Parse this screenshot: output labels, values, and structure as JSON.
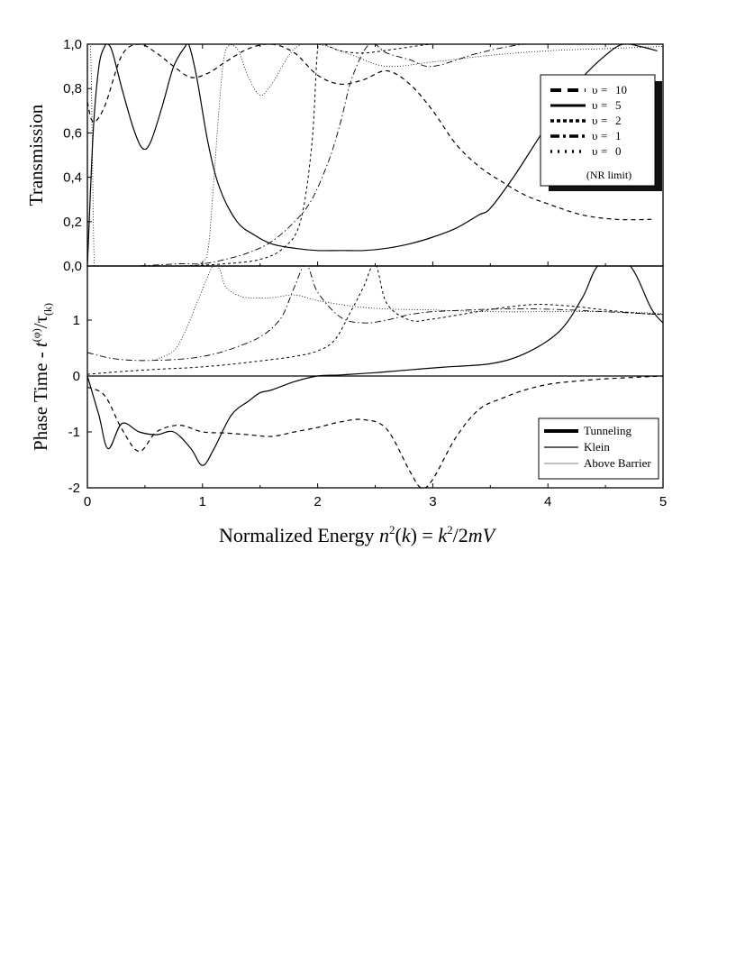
{
  "chart_data": [
    {
      "type": "line",
      "panel": "top",
      "ylabel": "Transmission",
      "xlim": [
        0,
        5
      ],
      "ylim": [
        0,
        1
      ],
      "y_ticks": [
        "0,0",
        "0,2",
        "0,4",
        "0,6",
        "0,8",
        "1,0"
      ],
      "legend_placement": "right",
      "legend": [
        {
          "symbol": "υ",
          "eq": "=",
          "value": "10",
          "style": "dash"
        },
        {
          "symbol": "υ",
          "eq": "=",
          "value": "5",
          "style": "solid"
        },
        {
          "symbol": "υ",
          "eq": "=",
          "value": "2",
          "style": "short-dash"
        },
        {
          "symbol": "υ",
          "eq": "=",
          "value": "1",
          "style": "dash-dot"
        },
        {
          "symbol": "υ",
          "eq": "=",
          "value": "0",
          "style": "dot"
        }
      ],
      "legend_note": "(NR limit)",
      "series": [
        {
          "style": "dash",
          "x": [
            0,
            0.05,
            0.15,
            0.3,
            0.45,
            0.6,
            0.75,
            0.9,
            1.05,
            1.2,
            1.4,
            1.6,
            1.8,
            2.0,
            2.2,
            2.4,
            2.6,
            2.8,
            3.0,
            3.2,
            3.4,
            3.6,
            3.8,
            4.0,
            4.3,
            4.6,
            4.9
          ],
          "y": [
            0.74,
            0.65,
            0.72,
            0.95,
            1.0,
            0.96,
            0.9,
            0.85,
            0.87,
            0.92,
            0.98,
            1.0,
            0.96,
            0.86,
            0.82,
            0.84,
            0.88,
            0.82,
            0.7,
            0.55,
            0.45,
            0.38,
            0.32,
            0.28,
            0.23,
            0.21,
            0.21
          ]
        },
        {
          "style": "solid",
          "x": [
            0,
            0.05,
            0.1,
            0.15,
            0.18,
            0.22,
            0.3,
            0.4,
            0.48,
            0.55,
            0.65,
            0.75,
            0.85,
            0.88,
            0.95,
            1.05,
            1.15,
            1.3,
            1.45,
            1.6,
            1.8,
            2.0,
            2.2,
            2.4,
            2.6,
            2.8,
            3.0,
            3.2,
            3.4,
            3.5,
            3.7,
            3.9,
            4.1,
            4.3,
            4.5,
            4.65,
            4.8,
            4.95
          ],
          "y": [
            0.0,
            0.6,
            0.9,
            0.99,
            1.0,
            0.96,
            0.8,
            0.62,
            0.53,
            0.56,
            0.72,
            0.9,
            0.99,
            1.0,
            0.85,
            0.55,
            0.35,
            0.2,
            0.14,
            0.1,
            0.08,
            0.07,
            0.07,
            0.07,
            0.08,
            0.1,
            0.13,
            0.17,
            0.23,
            0.26,
            0.4,
            0.56,
            0.72,
            0.85,
            0.95,
            1.0,
            0.99,
            0.97
          ]
        },
        {
          "style": "short-dash",
          "x": [
            0,
            0.4,
            0.8,
            1.2,
            1.5,
            1.7,
            1.85,
            1.95,
            2.0,
            2.05,
            2.1,
            2.2,
            2.4,
            2.7,
            3.0,
            3.3,
            3.6,
            4.0,
            4.4,
            4.8,
            5.0
          ],
          "y": [
            0.0,
            0.0,
            0.0,
            0.01,
            0.03,
            0.08,
            0.2,
            0.55,
            0.98,
            1.0,
            0.99,
            0.97,
            0.96,
            0.98,
            1.0,
            1.0,
            1.0,
            1.0,
            1.0,
            1.0,
            1.0
          ]
        },
        {
          "style": "dash-dot",
          "x": [
            0,
            0.4,
            0.8,
            1.0,
            1.2,
            1.4,
            1.6,
            1.8,
            1.95,
            2.1,
            2.2,
            2.3,
            2.45,
            2.6,
            2.8,
            3.0,
            3.4,
            3.8,
            4.2,
            4.6,
            5.0
          ],
          "y": [
            0.0,
            0.0,
            0.01,
            0.01,
            0.03,
            0.06,
            0.11,
            0.2,
            0.3,
            0.48,
            0.65,
            0.85,
            1.0,
            0.96,
            0.93,
            0.9,
            0.96,
            1.0,
            1.0,
            1.0,
            1.0
          ]
        },
        {
          "style": "dot",
          "x": [
            0,
            0.03,
            0.06,
            0.1,
            0.3,
            0.6,
            0.9,
            1.0,
            1.05,
            1.1,
            1.15,
            1.2,
            1.3,
            1.4,
            1.5,
            1.6,
            1.8,
            2.0,
            2.3,
            2.6,
            3.0,
            3.5,
            4.0,
            4.5,
            5.0
          ],
          "y": [
            1.0,
            0.95,
            0.0,
            0.0,
            0.0,
            0.0,
            0.0,
            0.02,
            0.08,
            0.4,
            0.75,
            0.97,
            0.98,
            0.85,
            0.77,
            0.82,
            0.98,
            1.0,
            0.95,
            0.9,
            0.92,
            0.95,
            0.97,
            0.98,
            0.99
          ]
        }
      ]
    },
    {
      "type": "line",
      "panel": "bottom",
      "ylabel": "Phase Time - t(φ)/τ(k)",
      "xlabel": "Normalized Energy  n²(k) = k²/2mV",
      "xlim": [
        0,
        5
      ],
      "ylim": [
        -2,
        2
      ],
      "x_ticks": [
        "0",
        "1",
        "2",
        "3",
        "4",
        "5"
      ],
      "y_ticks": [
        "-2",
        "-1",
        "0",
        "1"
      ],
      "legend_placement": "bottom-right",
      "legend": [
        {
          "label": "Tunneling",
          "style": "thick"
        },
        {
          "label": "Klein",
          "style": "medium"
        },
        {
          "label": "Above Barrier",
          "style": "thin"
        }
      ],
      "series": [
        {
          "style": "dash",
          "x": [
            0,
            0.15,
            0.3,
            0.45,
            0.6,
            0.8,
            1.0,
            1.2,
            1.4,
            1.6,
            1.8,
            2.0,
            2.2,
            2.4,
            2.6,
            2.8,
            2.9,
            3.0,
            3.2,
            3.4,
            3.6,
            3.8,
            4.0,
            4.2,
            4.5,
            4.8,
            5.0
          ],
          "y": [
            -0.2,
            -0.35,
            -0.95,
            -1.35,
            -1.0,
            -0.88,
            -1.0,
            -1.02,
            -1.05,
            -1.08,
            -1.0,
            -0.92,
            -0.82,
            -0.78,
            -0.95,
            -1.7,
            -2.0,
            -1.85,
            -1.1,
            -0.6,
            -0.4,
            -0.25,
            -0.15,
            -0.1,
            -0.05,
            -0.02,
            0.0
          ]
        },
        {
          "style": "solid",
          "x": [
            0,
            0.1,
            0.18,
            0.3,
            0.45,
            0.6,
            0.75,
            0.9,
            1.0,
            1.1,
            1.25,
            1.4,
            1.5,
            1.6,
            1.8,
            2.0,
            2.2,
            2.5,
            2.8,
            3.1,
            3.5,
            3.8,
            4.1,
            4.3,
            4.45,
            4.7,
            4.9,
            5.0
          ],
          "y": [
            0.0,
            -0.7,
            -1.3,
            -0.85,
            -1.0,
            -1.05,
            -1.0,
            -1.3,
            -1.6,
            -1.3,
            -0.7,
            -0.45,
            -0.3,
            -0.25,
            -0.1,
            0.0,
            0.02,
            0.06,
            0.11,
            0.16,
            0.22,
            0.4,
            0.8,
            1.4,
            2.0,
            2.0,
            1.2,
            0.95
          ]
        },
        {
          "style": "short-dash",
          "x": [
            0,
            0.3,
            0.6,
            0.9,
            1.2,
            1.5,
            1.8,
            2.0,
            2.15,
            2.3,
            2.4,
            2.5,
            2.6,
            2.8,
            3.0,
            3.3,
            3.6,
            3.9,
            4.2,
            4.5,
            4.8,
            5.0
          ],
          "y": [
            0.03,
            0.08,
            0.12,
            0.15,
            0.2,
            0.27,
            0.35,
            0.45,
            0.65,
            1.2,
            1.6,
            2.0,
            1.3,
            1.0,
            1.02,
            1.12,
            1.22,
            1.28,
            1.25,
            1.18,
            1.12,
            1.1
          ]
        },
        {
          "style": "dash-dot",
          "x": [
            0,
            0.2,
            0.4,
            0.6,
            0.8,
            1.0,
            1.2,
            1.4,
            1.5,
            1.6,
            1.7,
            1.8,
            1.9,
            2.0,
            2.2,
            2.4,
            2.6,
            2.8,
            3.0,
            3.3,
            3.6,
            3.9,
            4.2,
            4.5,
            4.8,
            5.0
          ],
          "y": [
            0.42,
            0.32,
            0.28,
            0.28,
            0.3,
            0.35,
            0.45,
            0.6,
            0.7,
            0.85,
            1.1,
            1.6,
            2.0,
            1.5,
            1.05,
            0.95,
            1.0,
            1.1,
            1.15,
            1.18,
            1.2,
            1.2,
            1.18,
            1.15,
            1.12,
            1.1
          ]
        },
        {
          "style": "dot",
          "x": [
            0.6,
            0.75,
            0.85,
            0.95,
            1.05,
            1.1,
            1.15,
            1.2,
            1.3,
            1.4,
            1.6,
            1.8,
            2.0,
            2.3,
            2.6,
            3.0,
            3.5,
            4.0,
            4.5,
            5.0
          ],
          "y": [
            0.3,
            0.45,
            0.8,
            1.3,
            1.8,
            2.0,
            1.9,
            1.6,
            1.45,
            1.4,
            1.4,
            1.45,
            1.35,
            1.25,
            1.2,
            1.18,
            1.15,
            1.15,
            1.15,
            1.12
          ]
        }
      ]
    }
  ]
}
